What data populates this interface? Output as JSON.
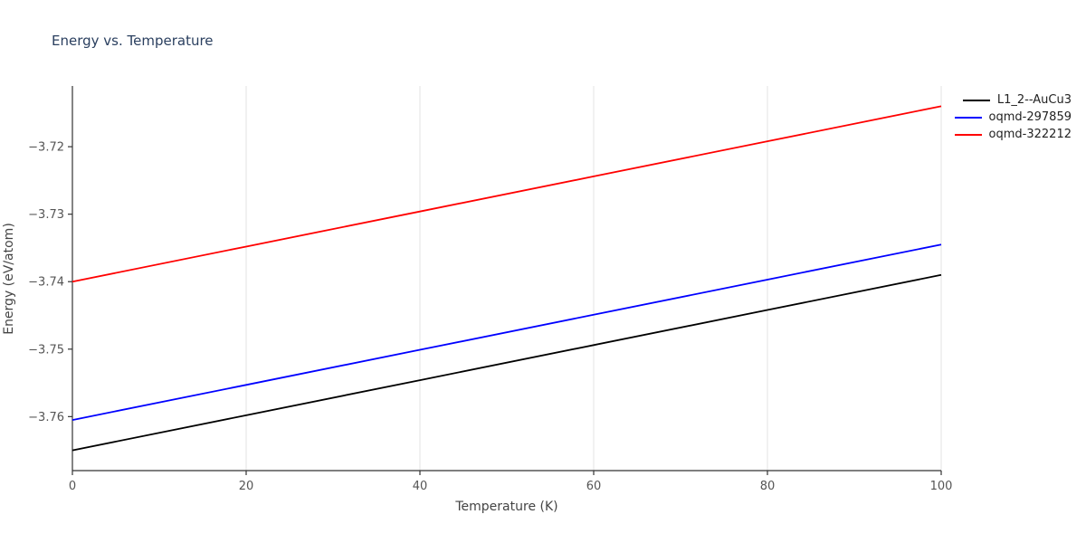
{
  "chart_data": {
    "type": "line",
    "title": "Energy vs. Temperature",
    "xlabel": "Temperature (K)",
    "ylabel": "Energy (eV/atom)",
    "xlim": [
      0,
      100
    ],
    "ylim": [
      -3.768,
      -3.711
    ],
    "x_ticks": [
      0,
      20,
      40,
      60,
      80,
      100
    ],
    "y_ticks": [
      -3.72,
      -3.73,
      -3.74,
      -3.75,
      -3.76
    ],
    "grid": "vertical-only",
    "grid_color": "#e3e3e3",
    "axis_color": "#333333",
    "legend_position": "top-right",
    "x": [
      0,
      20,
      40,
      60,
      80,
      100
    ],
    "series": [
      {
        "name": "L1_2--AuCu3",
        "color": "#000000",
        "values": [
          -3.765,
          -3.7598,
          -3.7546,
          -3.7494,
          -3.7442,
          -3.739
        ]
      },
      {
        "name": "oqmd-297859",
        "color": "#0000ff",
        "values": [
          -3.7605,
          -3.7553,
          -3.7501,
          -3.7449,
          -3.7397,
          -3.7345
        ]
      },
      {
        "name": "oqmd-322212",
        "color": "#ff0000",
        "values": [
          -3.74,
          -3.7348,
          -3.7296,
          -3.7244,
          -3.7192,
          -3.714
        ]
      }
    ]
  }
}
